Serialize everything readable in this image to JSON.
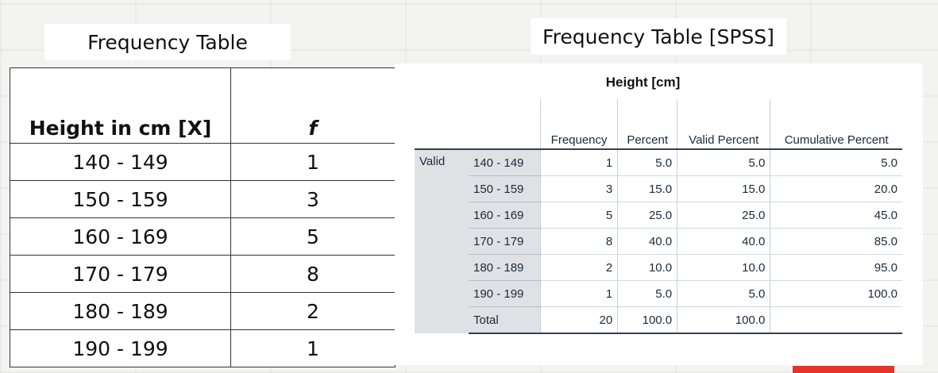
{
  "left_title": "Frequency Table",
  "right_title": "Frequency Table [SPSS]",
  "left_table": {
    "headers": [
      "Height in cm [X]",
      "f"
    ],
    "rows": [
      [
        "140 - 149",
        "1"
      ],
      [
        "150 - 159",
        "3"
      ],
      [
        "160 - 169",
        "5"
      ],
      [
        "170 - 179",
        "8"
      ],
      [
        "180 - 189",
        "2"
      ],
      [
        "190 - 199",
        "1"
      ]
    ]
  },
  "spss_table": {
    "title": "Height [cm]",
    "headers": [
      "Frequency",
      "Percent",
      "Valid Percent",
      "Cumulative Percent"
    ],
    "group_label": "Valid",
    "rows": [
      [
        "140 - 149",
        "1",
        "5.0",
        "5.0",
        "5.0"
      ],
      [
        "150 - 159",
        "3",
        "15.0",
        "15.0",
        "20.0"
      ],
      [
        "160 - 169",
        "5",
        "25.0",
        "25.0",
        "45.0"
      ],
      [
        "170 - 179",
        "8",
        "40.0",
        "40.0",
        "85.0"
      ],
      [
        "180 - 189",
        "2",
        "10.0",
        "10.0",
        "95.0"
      ],
      [
        "190 - 199",
        "1",
        "5.0",
        "5.0",
        "100.0"
      ],
      [
        "Total",
        "20",
        "100.0",
        "100.0",
        ""
      ]
    ]
  },
  "colors": {
    "accent_red": "#e5332a",
    "spss_text": "#1b2a3a",
    "spss_label_bg": "#dfe1e4"
  }
}
